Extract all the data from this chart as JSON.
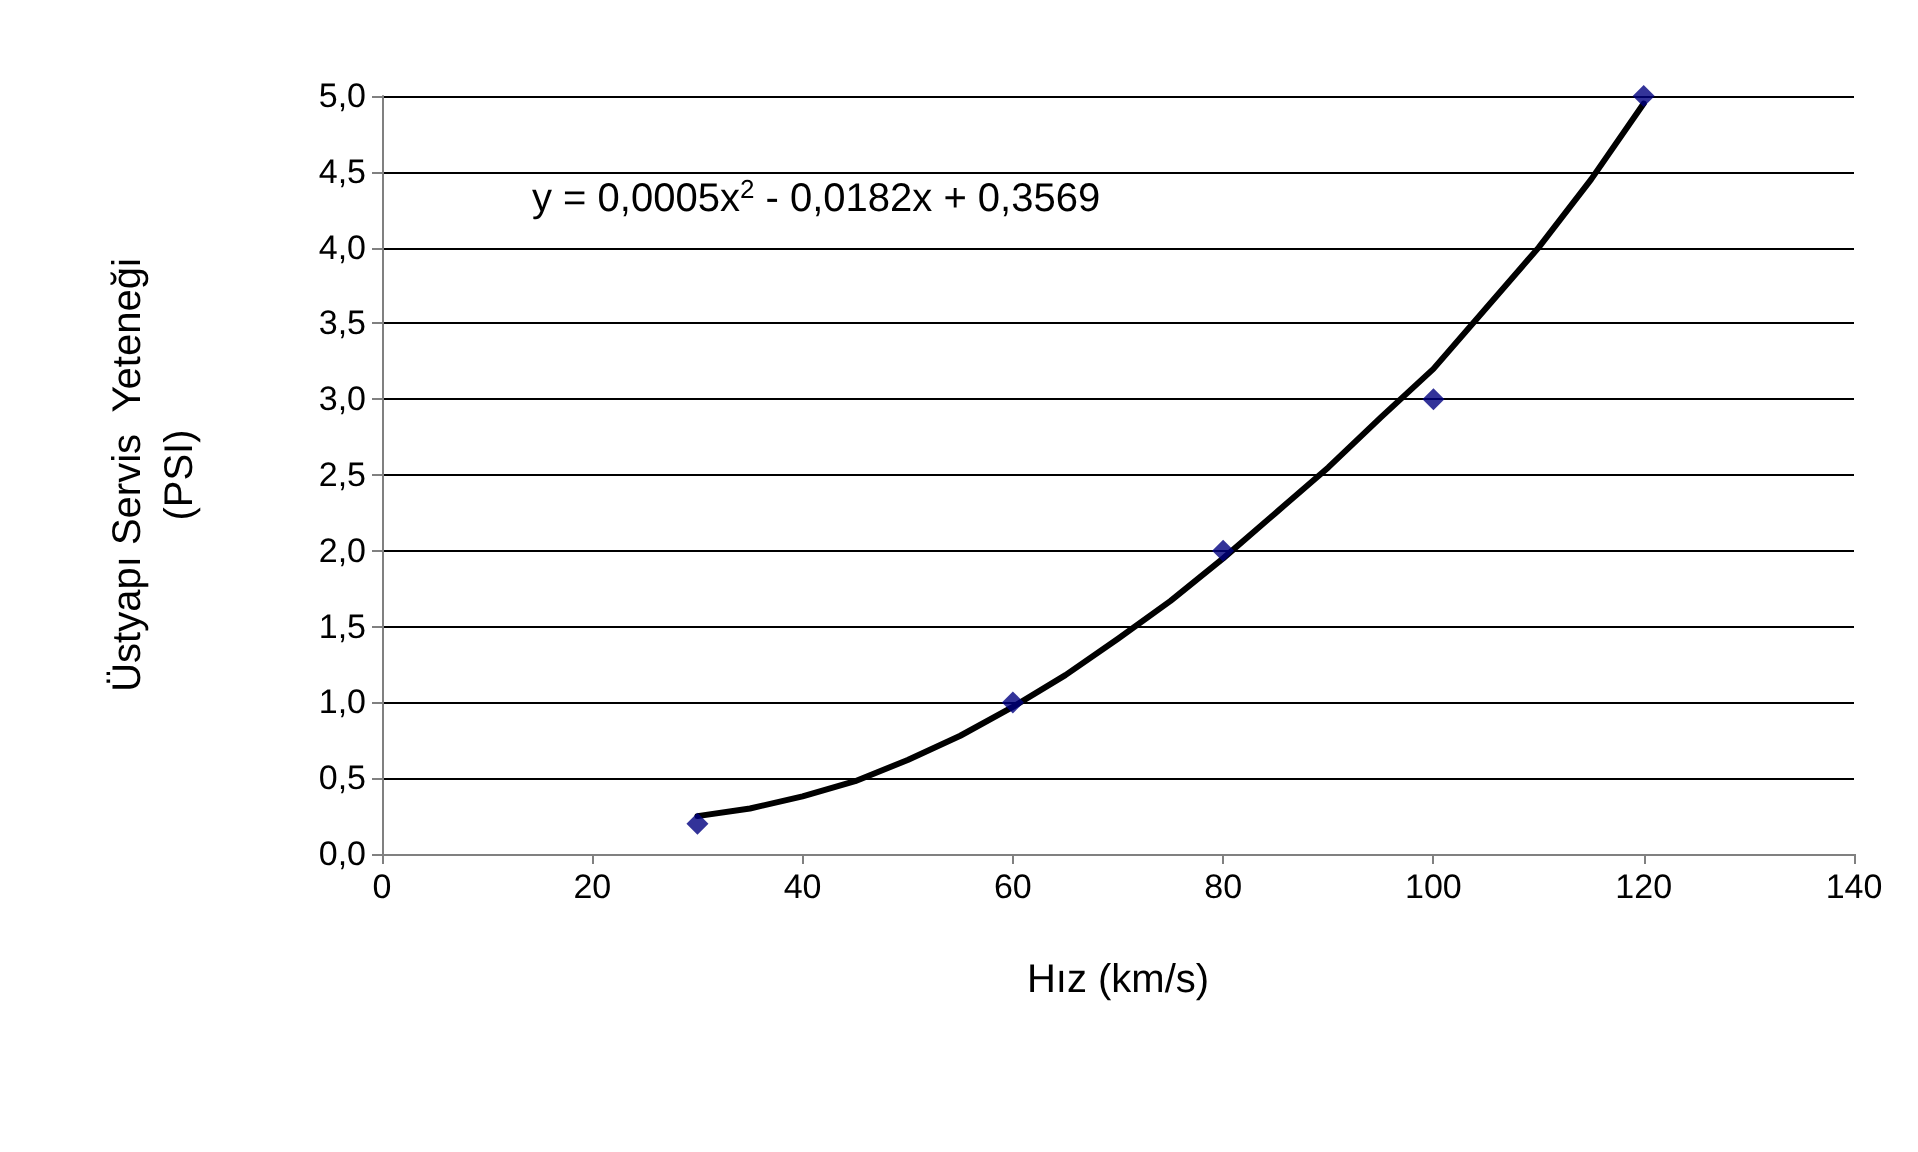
{
  "chart_data": {
    "type": "scatter",
    "xlabel": "Hız (km/s)",
    "ylabel": "Üstyapı Servis  Yeteneği\n(PSI)",
    "annotations": [
      "y = 0,0005x$^{2}$ - 0,0182x + 0,3569"
    ],
    "series": [
      {
        "type": "scatter",
        "color": "#000080",
        "marker": "diamond",
        "x": [
          30,
          60,
          80,
          100,
          120
        ],
        "values": [
          0.2,
          1.0,
          2.0,
          3.0,
          5.0
        ]
      },
      {
        "type": "line",
        "color": "#000000",
        "marker": "none",
        "line_style": "solid",
        "x": [
          30,
          35,
          40,
          45,
          50,
          55,
          60,
          65,
          70,
          75,
          80,
          85,
          90,
          95,
          100,
          105,
          110,
          115,
          120
        ],
        "values": [
          0.25,
          0.3,
          0.38,
          0.48,
          0.62,
          0.78,
          0.97,
          1.18,
          1.42,
          1.67,
          1.95,
          2.25,
          2.55,
          2.88,
          3.2,
          3.6,
          4.0,
          4.45,
          4.95
        ]
      }
    ],
    "xlim": [
      0,
      140
    ],
    "xticks": [
      0,
      20,
      40,
      60,
      80,
      100,
      120,
      140
    ],
    "ylim": [
      0,
      5
    ],
    "yticks": [
      {
        "value": 0,
        "label": "0,0"
      },
      {
        "value": 0.5,
        "label": "0,5"
      },
      {
        "value": 1,
        "label": "1,0"
      },
      {
        "value": 1.5,
        "label": "1,5"
      },
      {
        "value": 2,
        "label": "2,0"
      },
      {
        "value": 2.5,
        "label": "2,5"
      },
      {
        "value": 3,
        "label": "3,0"
      },
      {
        "value": 3.5,
        "label": "3,5"
      },
      {
        "value": 4,
        "label": "4,0"
      },
      {
        "value": 4.5,
        "label": "4,5"
      },
      {
        "value": 5,
        "label": "5,0"
      }
    ],
    "grid": "y"
  }
}
